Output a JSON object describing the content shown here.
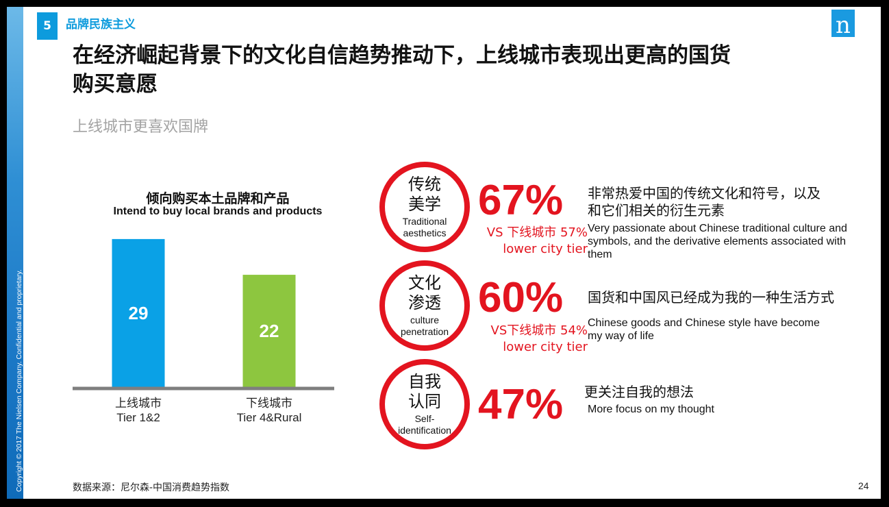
{
  "sidebar": {
    "copyright": "Copyright © 2017 The Nielsen Company. Confidential and proprietary."
  },
  "header": {
    "section_number": "5",
    "section_title": "品牌民族主义",
    "logo_letter": "n",
    "title_line1": "在经济崛起背景下的文化自信趋势推动下，上线城市表现出更高的国货",
    "title_line2": "购买意愿",
    "subtitle": "上线城市更喜欢国牌"
  },
  "chart_data": {
    "type": "bar",
    "title": "倾向购买本土品牌和产品",
    "subtitle": "Intend to buy local brands and products",
    "categories": [
      "上线城市",
      "下线城市"
    ],
    "categories_en": [
      "Tier 1&2",
      "Tier 4&Rural"
    ],
    "values": [
      29,
      22
    ],
    "data_labels": [
      "29",
      "22"
    ],
    "colors": [
      "#0aa1e6",
      "#8dc63f"
    ],
    "ylim": [
      0,
      31
    ],
    "grid": false,
    "legend": "none"
  },
  "stats": [
    {
      "ring_cn_1": "传统",
      "ring_cn_2": "美学",
      "ring_en_1": "Traditional",
      "ring_en_2": "aesthetics",
      "percent": "67%",
      "vs_1": "VS 下线城市 57%",
      "vs_2": "lower city tier",
      "desc_cn_1": "非常热爱中国的传统文化和符号，以及",
      "desc_cn_2": "和它们相关的衍生元素",
      "desc_en_1": "Very passionate about Chinese traditional culture and",
      "desc_en_2": "symbols, and the derivative elements associated with",
      "desc_en_3": "them"
    },
    {
      "ring_cn_1": "文化",
      "ring_cn_2": "渗透",
      "ring_en_1": "culture",
      "ring_en_2": "penetration",
      "percent": "60%",
      "vs_1": "VS下线城市 54%",
      "vs_2": "lower city tier",
      "desc_cn_1": "国货和中国风已经成为我的一种生活方式",
      "desc_en_1": "Chinese goods and Chinese style have become",
      "desc_en_2": "my way of life"
    },
    {
      "ring_cn_1": "自我",
      "ring_cn_2": "认同",
      "ring_en_1": "Self-",
      "ring_en_2": "identification",
      "percent": "47%",
      "desc_cn_1": "更关注自我的想法",
      "desc_en_1": "More focus on my thought"
    }
  ],
  "footer": {
    "source": "数据来源：尼尔森-中国消费趋势指数",
    "page_number": "24"
  },
  "colors": {
    "accent_red": "#e3141f",
    "accent_blue": "#0d9bdd"
  }
}
